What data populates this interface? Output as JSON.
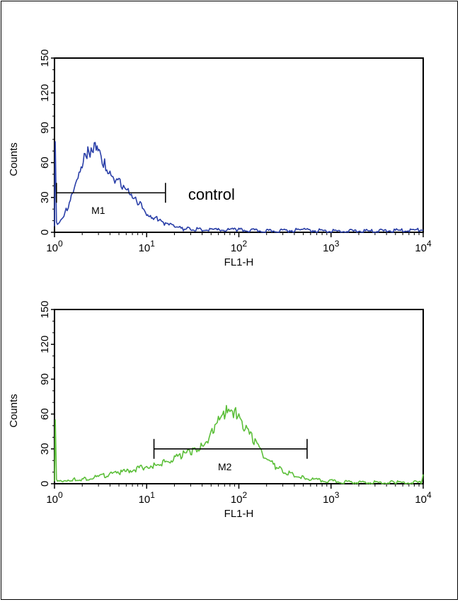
{
  "chart_data": [
    {
      "type": "line",
      "xscale": "log",
      "xlim": [
        1,
        10000
      ],
      "ylim": [
        0,
        150
      ],
      "xlabel": "FL1-H",
      "ylabel": "Counts",
      "yticks": [
        "0",
        "30",
        "60",
        "90",
        "120",
        "150"
      ],
      "xticks": [
        {
          "base": "10",
          "exp": "0",
          "value": 1
        },
        {
          "base": "10",
          "exp": "1",
          "value": 10
        },
        {
          "base": "10",
          "exp": "2",
          "value": 100
        },
        {
          "base": "10",
          "exp": "3",
          "value": 1000
        },
        {
          "base": "10",
          "exp": "4",
          "value": 10000
        }
      ],
      "annotation": "control",
      "marker": {
        "label": "M1",
        "from": 1.05,
        "to": 16,
        "y": 34
      },
      "color": "#2a3fa8",
      "series": [
        {
          "x": [
            1,
            1.02,
            1.05,
            1.1,
            1.2,
            1.3,
            1.45,
            1.6,
            1.8,
            2.0,
            2.1,
            2.2,
            2.3,
            2.5,
            2.7,
            2.9,
            3.1,
            3.3,
            3.6,
            4.0,
            4.4,
            5.0,
            5.6,
            6.3,
            7.0,
            8.0,
            9.0,
            10,
            11,
            12.5,
            14,
            16,
            18,
            20,
            25,
            30,
            40,
            60,
            100,
            200,
            500,
            1000,
            3000,
            10000
          ],
          "y": [
            5,
            78,
            10,
            8,
            12,
            17,
            25,
            34,
            44,
            56,
            72,
            66,
            74,
            68,
            72,
            70,
            64,
            62,
            57,
            53,
            48,
            45,
            38,
            34,
            28,
            26,
            22,
            16,
            15,
            12,
            10,
            7,
            6,
            5,
            3,
            3,
            2,
            2,
            2,
            1,
            2,
            1,
            1,
            2
          ]
        }
      ]
    },
    {
      "type": "line",
      "xscale": "log",
      "xlim": [
        1,
        10000
      ],
      "ylim": [
        0,
        150
      ],
      "xlabel": "FL1-H",
      "ylabel": "Counts",
      "yticks": [
        "0",
        "30",
        "60",
        "90",
        "120",
        "150"
      ],
      "xticks": [
        {
          "base": "10",
          "exp": "0",
          "value": 1
        },
        {
          "base": "10",
          "exp": "1",
          "value": 10
        },
        {
          "base": "10",
          "exp": "2",
          "value": 100
        },
        {
          "base": "10",
          "exp": "3",
          "value": 1000
        },
        {
          "base": "10",
          "exp": "4",
          "value": 10000
        }
      ],
      "marker": {
        "label": "M2",
        "from": 12,
        "to": 550,
        "y": 30
      },
      "color": "#5cbf3a",
      "series": [
        {
          "x": [
            1,
            1.02,
            1.05,
            1.1,
            1.3,
            1.6,
            2,
            3,
            4,
            5,
            7,
            9,
            10,
            12,
            15,
            20,
            25,
            30,
            35,
            40,
            45,
            50,
            55,
            60,
            65,
            70,
            75,
            80,
            85,
            90,
            100,
            120,
            150,
            200,
            250,
            300,
            400,
            500,
            700,
            1000,
            2000,
            5000,
            9500,
            10000
          ],
          "y": [
            2,
            55,
            5,
            3,
            3,
            4,
            4,
            6,
            8,
            9,
            12,
            14,
            15,
            16,
            18,
            22,
            25,
            27,
            30,
            33,
            38,
            44,
            48,
            53,
            56,
            60,
            64,
            66,
            64,
            61,
            57,
            47,
            35,
            22,
            15,
            11,
            7,
            5,
            3,
            2,
            1,
            1,
            1,
            8
          ]
        }
      ]
    }
  ]
}
